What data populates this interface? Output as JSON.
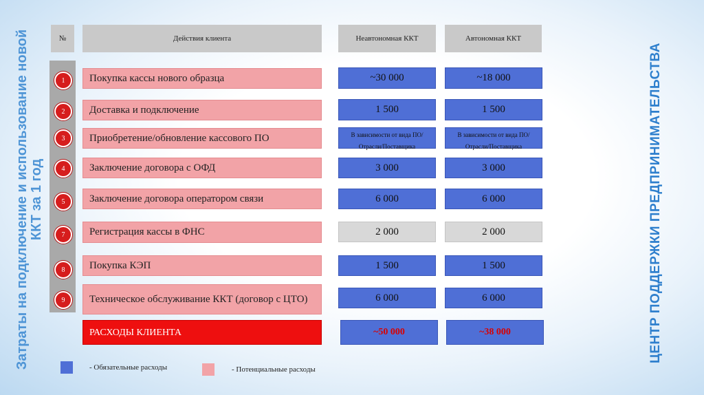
{
  "titles": {
    "left": "Затраты на подключение и использование новой ККТ за 1 год",
    "right": "ЦЕНТР ПОДДЕРЖКИ ПРЕДПРИНИМАТЕЛЬСТВА"
  },
  "header": {
    "num": "№",
    "actions": "Действия клиента",
    "col1": "Неавтономная ККТ",
    "col2": "Автономная ККТ"
  },
  "rows": [
    {
      "num": "1",
      "action": "Покупка кассы нового образца",
      "v1": "~30 000",
      "v2": "~18 000"
    },
    {
      "num": "2",
      "action": "Доставка и подключение",
      "v1": "1 500",
      "v2": "1 500"
    },
    {
      "num": "3",
      "action": "Приобретение/обновление кассового ПО",
      "v1": "В зависимости от вида ПО/ Отрасли/Поставщика",
      "v2": "В зависимости от вида ПО/ Отрасли/Поставщика"
    },
    {
      "num": "4",
      "action": "Заключение договора с ОФД",
      "v1": "3 000",
      "v2": "3 000"
    },
    {
      "num": "5",
      "action": "Заключение договора оператором связи",
      "v1": "6 000",
      "v2": "6 000"
    },
    {
      "num": "7",
      "action": "Регистрация кассы в ФНС",
      "v1": "2 000",
      "v2": "2 000"
    },
    {
      "num": "8",
      "action": "Покупка КЭП",
      "v1": "1 500",
      "v2": "1 500"
    },
    {
      "num": "9",
      "action": "Техническое обслуживание ККТ (договор с ЦТО)",
      "v1": "6 000",
      "v2": "6 000"
    }
  ],
  "total": {
    "label": "РАСХОДЫ КЛИЕНТА",
    "v1": "~50 000",
    "v2": "~38 000"
  },
  "legend": {
    "mandatory": "- Обязательные расходы",
    "potential": "- Потенциальные расходы"
  },
  "colors": {
    "mandatory": "#4f6fd6",
    "potential": "#f2a3a7",
    "total": "#ee0f0f",
    "badge": "#d61d1d",
    "neutral": "#d8d8d8"
  }
}
